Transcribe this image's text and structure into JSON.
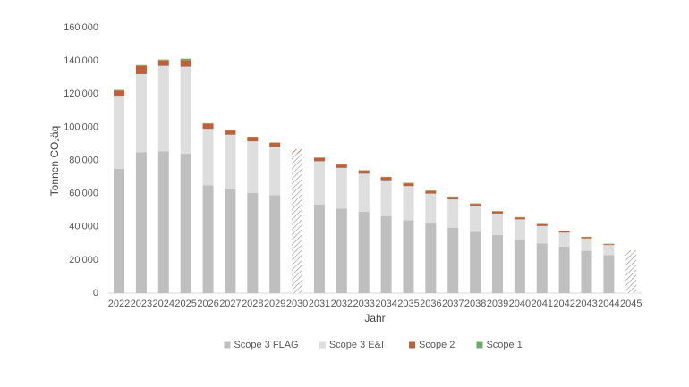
{
  "chart_data": {
    "type": "stacked_bar",
    "y_label": "Tonnen CO₂äq",
    "x_label": "Jahr",
    "categories": [
      "2022",
      "2023",
      "2024",
      "2025",
      "2026",
      "2027",
      "2028",
      "2029",
      "2030",
      "2031",
      "2032",
      "2033",
      "2034",
      "2035",
      "2036",
      "2037",
      "2038",
      "2039",
      "2040",
      "2041",
      "2042",
      "2043",
      "2044",
      "2045"
    ],
    "hatched_indices": [
      8,
      23
    ],
    "series": [
      {
        "name": "Scope 3 FLAG",
        "color": "#bfbfbf",
        "values": [
          75000,
          85000,
          85500,
          84000,
          65000,
          63000,
          60500,
          59000,
          55500,
          53500,
          51000,
          49000,
          46500,
          44000,
          42000,
          39500,
          37000,
          35000,
          32500,
          30000,
          28000,
          25500,
          23000,
          21000
        ]
      },
      {
        "name": "Scope 3 E&I",
        "color": "#dedede",
        "values": [
          44000,
          47000,
          51500,
          52500,
          34000,
          32500,
          31000,
          29000,
          28500,
          26000,
          24500,
          23000,
          21500,
          20500,
          18000,
          17000,
          15500,
          13000,
          12000,
          10500,
          8500,
          7500,
          6000,
          4000
        ]
      },
      {
        "name": "Scope 2",
        "color": "#c0603a",
        "values": [
          3000,
          5000,
          3200,
          3800,
          3000,
          2500,
          2500,
          2500,
          2500,
          2000,
          2000,
          1800,
          1800,
          1700,
          1600,
          1500,
          1300,
          1200,
          1100,
          1000,
          900,
          700,
          500,
          500
        ]
      },
      {
        "name": "Scope 1",
        "color": "#70a86a",
        "values": [
          500,
          500,
          600,
          1000,
          400,
          300,
          300,
          300,
          300,
          300,
          300,
          300,
          300,
          300,
          300,
          300,
          300,
          300,
          300,
          300,
          300,
          300,
          300,
          300
        ]
      }
    ],
    "ylim": [
      0,
      160000
    ],
    "yticks": [
      0,
      {
        "value": 20000,
        "label": "20'000"
      },
      {
        "value": 40000,
        "label": "40'000"
      },
      {
        "value": 60000,
        "label": "60'000"
      },
      {
        "value": 80000,
        "label": "80'000"
      },
      {
        "value": 100000,
        "label": "100'000"
      },
      {
        "value": 120000,
        "label": "120'000"
      },
      {
        "value": 140000,
        "label": "140'000"
      },
      {
        "value": 160000,
        "label": "160'000"
      }
    ],
    "grid": false,
    "legend": "bottom"
  }
}
